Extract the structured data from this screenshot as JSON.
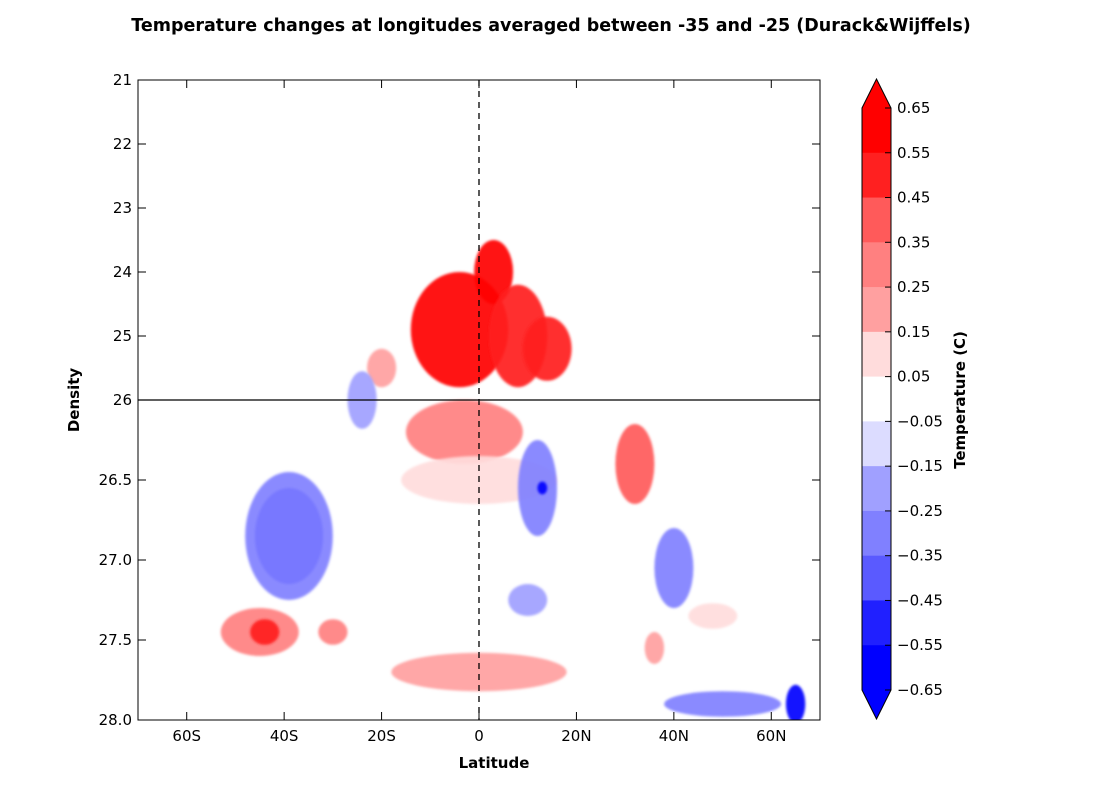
{
  "chart_data": {
    "type": "heatmap",
    "title": "Temperature changes at longitudes averaged between -35 and -25 (Durack&Wijffels)",
    "xlabel": "Latitude",
    "ylabel": "Density",
    "xlim": [
      -70,
      70
    ],
    "x_ticks": [
      {
        "value": -60,
        "label": "60S"
      },
      {
        "value": -40,
        "label": "40S"
      },
      {
        "value": -20,
        "label": "20S"
      },
      {
        "value": 0,
        "label": "0"
      },
      {
        "value": 20,
        "label": "20N"
      },
      {
        "value": 40,
        "label": "40N"
      },
      {
        "value": 60,
        "label": "60N"
      }
    ],
    "y_axis": {
      "inverted": true,
      "upper_segment": {
        "range": [
          21,
          26
        ],
        "ticks": [
          "21",
          "22",
          "23",
          "24",
          "25",
          "26"
        ]
      },
      "lower_segment": {
        "range": [
          26,
          28
        ],
        "ticks": [
          "26.5",
          "27.0",
          "27.5",
          "28.0"
        ]
      },
      "break_value": 26
    },
    "reference_lines": {
      "vertical_dashed_at_latitude": 0,
      "horizontal_solid_at_density": 26
    },
    "colorbar": {
      "label": "Temperature (C)",
      "extend": "both",
      "tick_labels": [
        "0.65",
        "0.55",
        "0.45",
        "0.35",
        "0.25",
        "0.15",
        "0.05",
        "−0.05",
        "−0.15",
        "−0.25",
        "−0.35",
        "−0.45",
        "−0.55",
        "−0.65"
      ],
      "level_colors": [
        "#ff0000",
        "#ff2020",
        "#ff5a5a",
        "#ff8080",
        "#ffa0a0",
        "#ffdcdc",
        "#ffffff",
        "#dcdcff",
        "#a0a0ff",
        "#8080ff",
        "#5a5aff",
        "#2020ff",
        "#0000ff"
      ],
      "over_color": "#ff0000",
      "under_color": "#0000ff"
    },
    "regions": [
      {
        "lat": -4,
        "density": 24.9,
        "rx": 10,
        "rd": 0.9,
        "value": 0.6
      },
      {
        "lat": 3,
        "density": 24.0,
        "rx": 4,
        "rd": 0.5,
        "value": 0.6
      },
      {
        "lat": 8,
        "density": 25.0,
        "rx": 6,
        "rd": 0.8,
        "value": 0.5
      },
      {
        "lat": 14,
        "density": 25.2,
        "rx": 5,
        "rd": 0.5,
        "value": 0.45
      },
      {
        "lat": -20,
        "density": 25.5,
        "rx": 3,
        "rd": 0.3,
        "value": 0.2
      },
      {
        "lat": -3,
        "density": 26.2,
        "rx": 12,
        "rd": 0.2,
        "value": 0.3
      },
      {
        "lat": 0,
        "density": 26.5,
        "rx": 16,
        "rd": 0.15,
        "value": 0.1
      },
      {
        "lat": 32,
        "density": 26.4,
        "rx": 4,
        "rd": 0.25,
        "value": 0.35
      },
      {
        "lat": -24,
        "density": 26.0,
        "rx": 3,
        "rd": 0.18,
        "value": -0.2
      },
      {
        "lat": -39,
        "density": 26.85,
        "rx": 7,
        "rd": 0.3,
        "value": -0.6
      },
      {
        "lat": -39,
        "density": 26.85,
        "rx": 9,
        "rd": 0.4,
        "value": -0.3
      },
      {
        "lat": 12,
        "density": 26.55,
        "rx": 4,
        "rd": 0.3,
        "value": -0.3
      },
      {
        "lat": 13,
        "density": 26.55,
        "rx": 1,
        "rd": 0.04,
        "value": -0.6
      },
      {
        "lat": 40,
        "density": 27.05,
        "rx": 4,
        "rd": 0.25,
        "value": -0.3
      },
      {
        "lat": 10,
        "density": 27.25,
        "rx": 4,
        "rd": 0.1,
        "value": -0.2
      },
      {
        "lat": -45,
        "density": 27.45,
        "rx": 8,
        "rd": 0.15,
        "value": 0.3
      },
      {
        "lat": -44,
        "density": 27.45,
        "rx": 3,
        "rd": 0.08,
        "value": 0.45
      },
      {
        "lat": 0,
        "density": 27.7,
        "rx": 18,
        "rd": 0.12,
        "value": 0.2
      },
      {
        "lat": 50,
        "density": 27.9,
        "rx": 12,
        "rd": 0.08,
        "value": -0.3
      },
      {
        "lat": 65,
        "density": 27.9,
        "rx": 2,
        "rd": 0.12,
        "value": -0.6
      },
      {
        "lat": 36,
        "density": 27.55,
        "rx": 2,
        "rd": 0.1,
        "value": 0.2
      },
      {
        "lat": 48,
        "density": 27.35,
        "rx": 5,
        "rd": 0.08,
        "value": 0.1
      },
      {
        "lat": -30,
        "density": 27.45,
        "rx": 3,
        "rd": 0.08,
        "value": 0.3
      }
    ]
  }
}
